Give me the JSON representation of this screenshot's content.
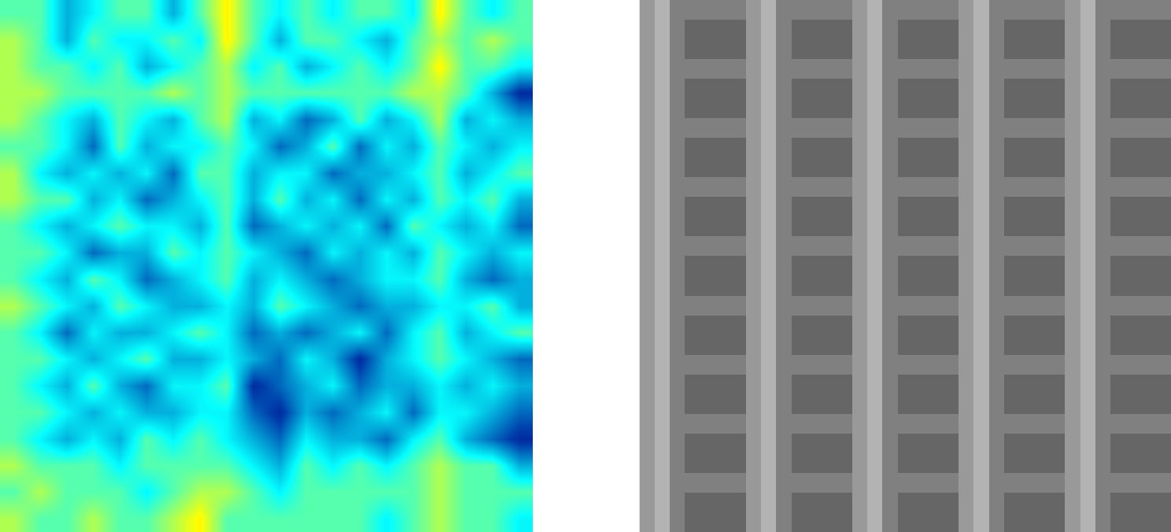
{
  "chart_data": [
    {
      "type": "heatmap",
      "color": "jet",
      "zlim": [
        0,
        11
      ],
      "tick_labels": false,
      "cells": [
        [
          5,
          5,
          3,
          4,
          5,
          5,
          3,
          5,
          7,
          5,
          4,
          5,
          4,
          5,
          5,
          4,
          7,
          5,
          4,
          5
        ],
        [
          6,
          5,
          3,
          5,
          4,
          4,
          5,
          4,
          7,
          5,
          3,
          5,
          5,
          4,
          3,
          5,
          6,
          5,
          6,
          5
        ],
        [
          6,
          5,
          5,
          4,
          5,
          3,
          4,
          5,
          6,
          4,
          5,
          3,
          4,
          5,
          4,
          5,
          7,
          5,
          5,
          4
        ],
        [
          6,
          6,
          5,
          5,
          5,
          5,
          6,
          5,
          6,
          5,
          5,
          5,
          5,
          5,
          5,
          6,
          6,
          5,
          3,
          1
        ],
        [
          6,
          5,
          4,
          3,
          5,
          4,
          3,
          5,
          6,
          3,
          4,
          2,
          3,
          5,
          3,
          4,
          6,
          3,
          4,
          3
        ],
        [
          5,
          5,
          4,
          2,
          5,
          3,
          4,
          4,
          5,
          4,
          2,
          3,
          5,
          2,
          4,
          3,
          5,
          4,
          3,
          4
        ],
        [
          6,
          4,
          3,
          4,
          3,
          4,
          2,
          5,
          5,
          3,
          4,
          4,
          2,
          3,
          3,
          4,
          5,
          3,
          4,
          5
        ],
        [
          6,
          5,
          5,
          3,
          4,
          2,
          3,
          4,
          5,
          3,
          5,
          3,
          4,
          2,
          4,
          3,
          5,
          4,
          5,
          3
        ],
        [
          5,
          4,
          3,
          4,
          5,
          4,
          4,
          3,
          5,
          2,
          3,
          4,
          3,
          4,
          2,
          5,
          4,
          3,
          4,
          2
        ],
        [
          5,
          5,
          4,
          2,
          3,
          3,
          5,
          4,
          5,
          4,
          3,
          2,
          4,
          3,
          4,
          3,
          5,
          4,
          3,
          4
        ],
        [
          5,
          4,
          3,
          5,
          4,
          2,
          3,
          4,
          5,
          3,
          4,
          3,
          2,
          3,
          4,
          4,
          5,
          3,
          2,
          3
        ],
        [
          6,
          5,
          4,
          3,
          5,
          4,
          3,
          3,
          4,
          3,
          5,
          4,
          3,
          2,
          3,
          3,
          4,
          4,
          5,
          3
        ],
        [
          5,
          4,
          2,
          4,
          3,
          3,
          4,
          5,
          4,
          2,
          3,
          2,
          3,
          4,
          2,
          4,
          5,
          3,
          4,
          5
        ],
        [
          5,
          5,
          4,
          3,
          4,
          5,
          3,
          3,
          4,
          3,
          2,
          4,
          3,
          1,
          3,
          4,
          5,
          4,
          3,
          2
        ],
        [
          5,
          4,
          3,
          5,
          3,
          2,
          4,
          4,
          5,
          1,
          2,
          3,
          4,
          2,
          3,
          3,
          4,
          3,
          4,
          3
        ],
        [
          5,
          5,
          4,
          3,
          4,
          3,
          3,
          4,
          4,
          2,
          1,
          3,
          2,
          3,
          4,
          2,
          4,
          4,
          3,
          2
        ],
        [
          5,
          4,
          3,
          4,
          3,
          5,
          4,
          5,
          4,
          3,
          2,
          4,
          3,
          3,
          2,
          4,
          5,
          3,
          2,
          1
        ],
        [
          6,
          5,
          5,
          5,
          4,
          5,
          5,
          5,
          5,
          4,
          3,
          5,
          4,
          5,
          4,
          5,
          6,
          5,
          5,
          3
        ],
        [
          5,
          6,
          5,
          5,
          5,
          4,
          5,
          6,
          6,
          5,
          4,
          5,
          5,
          5,
          5,
          5,
          6,
          5,
          5,
          5
        ],
        [
          6,
          5,
          5,
          6,
          5,
          5,
          6,
          7,
          5,
          5,
          5,
          5,
          5,
          5,
          4,
          5,
          6,
          5,
          5,
          4
        ]
      ]
    },
    {
      "type": "heatmap",
      "color": "gray",
      "zlim": [
        0,
        10
      ],
      "tick_labels": false,
      "cells": [
        [
          6,
          7,
          5,
          5,
          5,
          5,
          5,
          6,
          7,
          5,
          5,
          5,
          5,
          5,
          6,
          7,
          5,
          5,
          5,
          5,
          5,
          6,
          7,
          5,
          5,
          5,
          5,
          5,
          6,
          7,
          5,
          5,
          5,
          5,
          5
        ],
        [
          6,
          7,
          5,
          4,
          4,
          4,
          4,
          6,
          7,
          5,
          4,
          4,
          4,
          4,
          6,
          7,
          5,
          4,
          4,
          4,
          4,
          6,
          7,
          5,
          4,
          4,
          4,
          4,
          6,
          7,
          5,
          4,
          4,
          4,
          4
        ],
        [
          6,
          7,
          5,
          4,
          4,
          4,
          4,
          6,
          7,
          5,
          4,
          4,
          4,
          4,
          6,
          7,
          5,
          4,
          4,
          4,
          4,
          6,
          7,
          5,
          4,
          4,
          4,
          4,
          6,
          7,
          5,
          4,
          4,
          4,
          4
        ],
        [
          6,
          7,
          5,
          5,
          5,
          5,
          5,
          6,
          7,
          5,
          5,
          5,
          5,
          5,
          6,
          7,
          5,
          5,
          5,
          5,
          5,
          6,
          7,
          5,
          5,
          5,
          5,
          5,
          6,
          7,
          5,
          5,
          5,
          5,
          5
        ],
        [
          6,
          7,
          5,
          4,
          4,
          4,
          4,
          6,
          7,
          5,
          4,
          4,
          4,
          4,
          6,
          7,
          5,
          4,
          4,
          4,
          4,
          6,
          7,
          5,
          4,
          4,
          4,
          4,
          6,
          7,
          5,
          4,
          4,
          4,
          4
        ],
        [
          6,
          7,
          5,
          4,
          4,
          4,
          4,
          6,
          7,
          5,
          4,
          4,
          4,
          4,
          6,
          7,
          5,
          4,
          4,
          4,
          4,
          6,
          7,
          5,
          4,
          4,
          4,
          4,
          6,
          7,
          5,
          4,
          4,
          4,
          4
        ],
        [
          6,
          7,
          5,
          5,
          5,
          5,
          5,
          6,
          7,
          5,
          5,
          5,
          5,
          5,
          6,
          7,
          5,
          5,
          5,
          5,
          5,
          6,
          7,
          5,
          5,
          5,
          5,
          5,
          6,
          7,
          5,
          5,
          5,
          5,
          5
        ],
        [
          6,
          7,
          5,
          4,
          4,
          4,
          4,
          6,
          7,
          5,
          4,
          4,
          4,
          4,
          6,
          7,
          5,
          4,
          4,
          4,
          4,
          6,
          7,
          5,
          4,
          4,
          4,
          4,
          6,
          7,
          5,
          4,
          4,
          4,
          4
        ],
        [
          6,
          7,
          5,
          4,
          4,
          4,
          4,
          6,
          7,
          5,
          4,
          4,
          4,
          4,
          6,
          7,
          5,
          4,
          4,
          4,
          4,
          6,
          7,
          5,
          4,
          4,
          4,
          4,
          6,
          7,
          5,
          4,
          4,
          4,
          4
        ],
        [
          6,
          7,
          5,
          5,
          5,
          5,
          5,
          6,
          7,
          5,
          5,
          5,
          5,
          5,
          6,
          7,
          5,
          5,
          5,
          5,
          5,
          6,
          7,
          5,
          5,
          5,
          5,
          5,
          6,
          7,
          5,
          5,
          5,
          5,
          5
        ],
        [
          6,
          7,
          5,
          4,
          4,
          4,
          4,
          6,
          7,
          5,
          4,
          4,
          4,
          4,
          6,
          7,
          5,
          4,
          4,
          4,
          4,
          6,
          7,
          5,
          4,
          4,
          4,
          4,
          6,
          7,
          5,
          4,
          4,
          4,
          4
        ],
        [
          6,
          7,
          5,
          4,
          4,
          4,
          4,
          6,
          7,
          5,
          4,
          4,
          4,
          4,
          6,
          7,
          5,
          4,
          4,
          4,
          4,
          6,
          7,
          5,
          4,
          4,
          4,
          4,
          6,
          7,
          5,
          4,
          4,
          4,
          4
        ],
        [
          6,
          7,
          5,
          5,
          5,
          5,
          5,
          6,
          7,
          5,
          5,
          5,
          5,
          5,
          6,
          7,
          5,
          5,
          5,
          5,
          5,
          6,
          7,
          5,
          5,
          5,
          5,
          5,
          6,
          7,
          5,
          5,
          5,
          5,
          5
        ],
        [
          6,
          7,
          5,
          4,
          4,
          4,
          4,
          6,
          7,
          5,
          4,
          4,
          4,
          4,
          6,
          7,
          5,
          4,
          4,
          4,
          4,
          6,
          7,
          5,
          4,
          4,
          4,
          4,
          6,
          7,
          5,
          4,
          4,
          4,
          4
        ],
        [
          6,
          7,
          5,
          4,
          4,
          4,
          4,
          6,
          7,
          5,
          4,
          4,
          4,
          4,
          6,
          7,
          5,
          4,
          4,
          4,
          4,
          6,
          7,
          5,
          4,
          4,
          4,
          4,
          6,
          7,
          5,
          4,
          4,
          4,
          4
        ],
        [
          6,
          7,
          5,
          5,
          5,
          5,
          5,
          6,
          7,
          5,
          5,
          5,
          5,
          5,
          6,
          7,
          5,
          5,
          5,
          5,
          5,
          6,
          7,
          5,
          5,
          5,
          5,
          5,
          6,
          7,
          5,
          5,
          5,
          5,
          5
        ],
        [
          6,
          7,
          5,
          4,
          4,
          4,
          4,
          6,
          7,
          5,
          4,
          4,
          4,
          4,
          6,
          7,
          5,
          4,
          4,
          4,
          4,
          6,
          7,
          5,
          4,
          4,
          4,
          4,
          6,
          7,
          5,
          4,
          4,
          4,
          4
        ],
        [
          6,
          7,
          5,
          4,
          4,
          4,
          4,
          6,
          7,
          5,
          4,
          4,
          4,
          4,
          6,
          7,
          5,
          4,
          4,
          4,
          4,
          6,
          7,
          5,
          4,
          4,
          4,
          4,
          6,
          7,
          5,
          4,
          4,
          4,
          4
        ],
        [
          6,
          7,
          5,
          5,
          5,
          5,
          5,
          6,
          7,
          5,
          5,
          5,
          5,
          5,
          6,
          7,
          5,
          5,
          5,
          5,
          5,
          6,
          7,
          5,
          5,
          5,
          5,
          5,
          6,
          7,
          5,
          5,
          5,
          5,
          5
        ],
        [
          6,
          7,
          5,
          4,
          4,
          4,
          4,
          6,
          7,
          5,
          4,
          4,
          4,
          4,
          6,
          7,
          5,
          4,
          4,
          4,
          4,
          6,
          7,
          5,
          4,
          4,
          4,
          4,
          6,
          7,
          5,
          4,
          4,
          4,
          4
        ],
        [
          6,
          7,
          5,
          4,
          4,
          4,
          4,
          6,
          7,
          5,
          4,
          4,
          4,
          4,
          6,
          7,
          5,
          4,
          4,
          4,
          4,
          6,
          7,
          5,
          4,
          4,
          4,
          4,
          6,
          7,
          5,
          4,
          4,
          4,
          4
        ],
        [
          6,
          7,
          5,
          5,
          5,
          5,
          5,
          6,
          7,
          5,
          5,
          5,
          5,
          5,
          6,
          7,
          5,
          5,
          5,
          5,
          5,
          6,
          7,
          5,
          5,
          5,
          5,
          5,
          6,
          7,
          5,
          5,
          5,
          5,
          5
        ],
        [
          6,
          7,
          5,
          4,
          4,
          4,
          4,
          6,
          7,
          5,
          4,
          4,
          4,
          4,
          6,
          7,
          5,
          4,
          4,
          4,
          4,
          6,
          7,
          5,
          4,
          4,
          4,
          4,
          6,
          7,
          5,
          4,
          4,
          4,
          4
        ],
        [
          6,
          7,
          5,
          4,
          4,
          4,
          4,
          6,
          7,
          5,
          4,
          4,
          4,
          4,
          6,
          7,
          5,
          4,
          4,
          4,
          4,
          6,
          7,
          5,
          4,
          4,
          4,
          4,
          6,
          7,
          5,
          4,
          4,
          4,
          4
        ],
        [
          6,
          7,
          5,
          5,
          5,
          5,
          5,
          6,
          7,
          5,
          5,
          5,
          5,
          5,
          6,
          7,
          5,
          5,
          5,
          5,
          5,
          6,
          7,
          5,
          5,
          5,
          5,
          5,
          6,
          7,
          5,
          5,
          5,
          5,
          5
        ],
        [
          6,
          7,
          5,
          4,
          4,
          4,
          4,
          6,
          7,
          5,
          4,
          4,
          4,
          4,
          6,
          7,
          5,
          4,
          4,
          4,
          4,
          6,
          7,
          5,
          4,
          4,
          4,
          4,
          6,
          7,
          5,
          4,
          4,
          4,
          4
        ],
        [
          6,
          7,
          5,
          4,
          4,
          4,
          4,
          6,
          7,
          5,
          4,
          4,
          4,
          4,
          6,
          7,
          5,
          4,
          4,
          4,
          4,
          6,
          7,
          5,
          4,
          4,
          4,
          4,
          6,
          7,
          5,
          4,
          4,
          4,
          4
        ]
      ]
    }
  ]
}
